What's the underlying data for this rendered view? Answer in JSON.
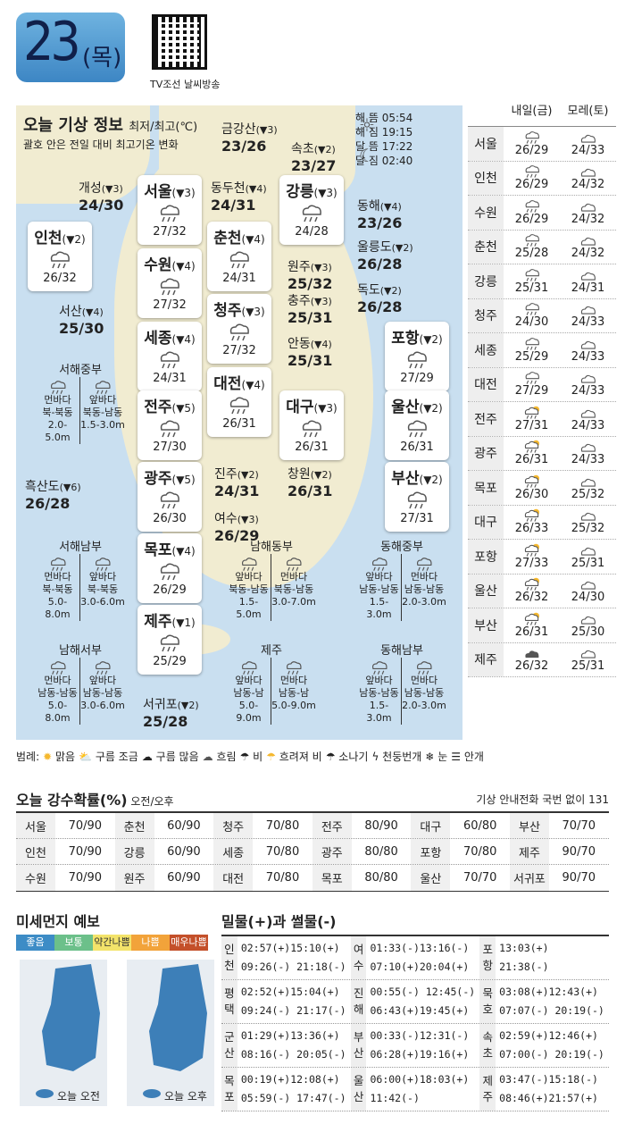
{
  "header": {
    "date": "23",
    "day": "(목)",
    "qr_caption": "TV조선 날씨방송"
  },
  "map": {
    "title": "오늘 기상 정보",
    "title_unit": "최저/최고(℃)",
    "subtitle": "괄호 안은 전일 대비 최고기온 변화",
    "sun": {
      "sunrise": "해 뜸 05:54",
      "sunset": "해 짐 19:15",
      "moonrise": "달 뜸 17:22",
      "moonset": "달 짐 02:40"
    },
    "cards": [
      {
        "name": "서울",
        "chg": "(▼3)",
        "v": "27/32",
        "icon": "rain"
      },
      {
        "name": "강릉",
        "chg": "(▼3)",
        "v": "24/28",
        "icon": "rain"
      },
      {
        "name": "인천",
        "chg": "(▼2)",
        "v": "26/32",
        "icon": "rain"
      },
      {
        "name": "춘천",
        "chg": "(▼4)",
        "v": "24/31",
        "icon": "rain"
      },
      {
        "name": "수원",
        "chg": "(▼4)",
        "v": "27/32",
        "icon": "rain"
      },
      {
        "name": "청주",
        "chg": "(▼3)",
        "v": "27/32",
        "icon": "rain"
      },
      {
        "name": "포항",
        "chg": "(▼2)",
        "v": "27/29",
        "icon": "rain"
      },
      {
        "name": "세종",
        "chg": "(▼4)",
        "v": "24/31",
        "icon": "rain"
      },
      {
        "name": "대전",
        "chg": "(▼4)",
        "v": "26/31",
        "icon": "rain"
      },
      {
        "name": "울산",
        "chg": "(▼2)",
        "v": "26/31",
        "icon": "rain"
      },
      {
        "name": "전주",
        "chg": "(▼5)",
        "v": "27/30",
        "icon": "rain"
      },
      {
        "name": "대구",
        "chg": "(▼3)",
        "v": "26/31",
        "icon": "rain"
      },
      {
        "name": "부산",
        "chg": "(▼2)",
        "v": "27/31",
        "icon": "rain"
      },
      {
        "name": "광주",
        "chg": "(▼5)",
        "v": "26/30",
        "icon": "rain"
      },
      {
        "name": "목포",
        "chg": "(▼4)",
        "v": "26/29",
        "icon": "rain"
      },
      {
        "name": "제주",
        "chg": "(▼1)",
        "v": "25/29",
        "icon": "rain"
      }
    ],
    "cities": [
      {
        "name": "금강산",
        "chg": "(▼3)",
        "v": "23/26"
      },
      {
        "name": "속초",
        "chg": "(▼2)",
        "v": "23/27"
      },
      {
        "name": "개성",
        "chg": "(▼3)",
        "v": "24/30"
      },
      {
        "name": "동두천",
        "chg": "(▼4)",
        "v": "24/31"
      },
      {
        "name": "동해",
        "chg": "(▼4)",
        "v": "23/26"
      },
      {
        "name": "울릉도",
        "chg": "(▼2)",
        "v": "26/28"
      },
      {
        "name": "원주",
        "chg": "(▼3)",
        "v": "25/32"
      },
      {
        "name": "독도",
        "chg": "(▼2)",
        "v": "26/28"
      },
      {
        "name": "서산",
        "chg": "(▼4)",
        "v": "25/30"
      },
      {
        "name": "충주",
        "chg": "(▼3)",
        "v": "25/31"
      },
      {
        "name": "안동",
        "chg": "(▼4)",
        "v": "25/31"
      },
      {
        "name": "흑산도",
        "chg": "(▼6)",
        "v": "26/28"
      },
      {
        "name": "진주",
        "chg": "(▼2)",
        "v": "24/31"
      },
      {
        "name": "창원",
        "chg": "(▼2)",
        "v": "26/31"
      },
      {
        "name": "여수",
        "chg": "(▼3)",
        "v": "26/29"
      },
      {
        "name": "서귀포",
        "chg": "(▼2)",
        "v": "25/28"
      }
    ],
    "seas": [
      {
        "name": "서해중부",
        "a": "먼바다",
        "a1": "북-북동",
        "a2": "2.0-5.0m",
        "b": "앞바다",
        "b1": "북동-남동",
        "b2": "1.5-3.0m"
      },
      {
        "name": "서해남부",
        "a": "먼바다",
        "a1": "북-북동",
        "a2": "5.0-8.0m",
        "b": "앞바다",
        "b1": "북-북동",
        "b2": "3.0-6.0m"
      },
      {
        "name": "남해동부",
        "a": "앞바다",
        "a1": "북동-남동",
        "a2": "1.5-5.0m",
        "b": "먼바다",
        "b1": "북동-남동",
        "b2": "3.0-7.0m"
      },
      {
        "name": "동해중부",
        "a": "앞바다",
        "a1": "남동-남동",
        "a2": "1.5-3.0m",
        "b": "먼바다",
        "b1": "남동-남동",
        "b2": "2.0-3.0m"
      },
      {
        "name": "남해서부",
        "a": "먼바다",
        "a1": "남동-남동",
        "a2": "5.0-8.0m",
        "b": "앞바다",
        "b1": "남동-남동",
        "b2": "3.0-6.0m"
      },
      {
        "name": "제주",
        "a": "앞바다",
        "a1": "남동-남",
        "a2": "5.0-9.0m",
        "b": "먼바다",
        "b1": "남동-남",
        "b2": "5.0-9.0m"
      },
      {
        "name": "동해남부",
        "a": "앞바다",
        "a1": "남동-남동",
        "a2": "1.5-3.0m",
        "b": "먼바다",
        "b1": "남동-남동",
        "b2": "2.0-3.0m"
      }
    ]
  },
  "forecast": {
    "tomorrow": "내일(금)",
    "dayafter": "모레(토)",
    "rows": [
      {
        "city": "서울",
        "t": "26/29",
        "ti": "rain",
        "d": "24/33",
        "di": "cloud"
      },
      {
        "city": "인천",
        "t": "26/29",
        "ti": "rain",
        "d": "24/32",
        "di": "cloud"
      },
      {
        "city": "수원",
        "t": "26/29",
        "ti": "rain",
        "d": "24/32",
        "di": "cloud"
      },
      {
        "city": "춘천",
        "t": "25/28",
        "ti": "rain",
        "d": "24/32",
        "di": "cloud"
      },
      {
        "city": "강릉",
        "t": "25/31",
        "ti": "rain",
        "d": "24/31",
        "di": "cloud"
      },
      {
        "city": "청주",
        "t": "24/30",
        "ti": "rain",
        "d": "24/33",
        "di": "cloud"
      },
      {
        "city": "세종",
        "t": "25/29",
        "ti": "rain",
        "d": "24/33",
        "di": "cloud"
      },
      {
        "city": "대전",
        "t": "27/29",
        "ti": "rain",
        "d": "24/33",
        "di": "cloud"
      },
      {
        "city": "전주",
        "t": "27/31",
        "ti": "sunrain",
        "d": "24/33",
        "di": "cloud"
      },
      {
        "city": "광주",
        "t": "26/31",
        "ti": "sunrain",
        "d": "24/33",
        "di": "cloud"
      },
      {
        "city": "목포",
        "t": "26/30",
        "ti": "sunrain",
        "d": "25/32",
        "di": "cloud"
      },
      {
        "city": "대구",
        "t": "26/33",
        "ti": "sunrain",
        "d": "25/32",
        "di": "cloud"
      },
      {
        "city": "포항",
        "t": "27/33",
        "ti": "sunrain",
        "d": "25/31",
        "di": "cloud"
      },
      {
        "city": "울산",
        "t": "26/32",
        "ti": "sunrain",
        "d": "24/30",
        "di": "cloud"
      },
      {
        "city": "부산",
        "t": "26/31",
        "ti": "sunrain",
        "d": "25/30",
        "di": "cloud"
      },
      {
        "city": "제주",
        "t": "26/32",
        "ti": "dark",
        "d": "25/31",
        "di": "cloud"
      }
    ]
  },
  "legend": {
    "prefix": "범례:",
    "items": [
      "맑음",
      "구름 조금",
      "구름 많음",
      "흐림",
      "비",
      "흐려져 비",
      "소나기",
      "천둥번개",
      "눈",
      "안개"
    ]
  },
  "rain": {
    "title": "오늘 강수확률(%)",
    "sub": "오전/오후",
    "tel": "기상 안내전화 국번 없이 131",
    "rows": [
      [
        "서울",
        "70/90",
        "춘천",
        "60/90",
        "청주",
        "70/80",
        "전주",
        "80/90",
        "대구",
        "60/80",
        "부산",
        "70/70"
      ],
      [
        "인천",
        "70/90",
        "강릉",
        "60/90",
        "세종",
        "70/80",
        "광주",
        "80/80",
        "포항",
        "70/80",
        "제주",
        "90/70"
      ],
      [
        "수원",
        "70/90",
        "원주",
        "60/90",
        "대전",
        "70/80",
        "목포",
        "80/80",
        "울산",
        "70/70",
        "서귀포",
        "90/70"
      ]
    ]
  },
  "dust": {
    "title": "미세먼지 예보",
    "levels": [
      "좋음",
      "보통",
      "약간나쁨",
      "나쁨",
      "매우나쁨"
    ],
    "colors": [
      "#3d8cc6",
      "#6cc08a",
      "#f3e36a",
      "#f2a33a",
      "#c4502a"
    ],
    "am": "오늘 오전",
    "pm": "오늘 오후"
  },
  "tide": {
    "title": "밀물(+)과 썰물(-)",
    "rows": [
      [
        {
          "k": "인\n천",
          "a": "02:57(+)15:10(+)",
          "b": "09:26(-) 21:18(-)"
        },
        {
          "k": "여\n수",
          "a": "01:33(-)13:16(-)",
          "b": "07:10(+)20:04(+)"
        },
        {
          "k": "포\n항",
          "a": "13:03(+)",
          "b": "21:38(-)"
        }
      ],
      [
        {
          "k": "평\n택",
          "a": "02:52(+)15:04(+)",
          "b": "09:24(-) 21:17(-)"
        },
        {
          "k": "진\n해",
          "a": "00:55(-) 12:45(-)",
          "b": "06:43(+)19:45(+)"
        },
        {
          "k": "묵\n호",
          "a": "03:08(+)12:43(+)",
          "b": "07:07(-) 20:19(-)"
        }
      ],
      [
        {
          "k": "군\n산",
          "a": "01:29(+)13:36(+)",
          "b": "08:16(-) 20:05(-)"
        },
        {
          "k": "부\n산",
          "a": "00:33(-)12:31(-)",
          "b": "06:28(+)19:16(+)"
        },
        {
          "k": "속\n초",
          "a": "02:59(+)12:46(+)",
          "b": "07:00(-) 20:19(-)"
        }
      ],
      [
        {
          "k": "목\n포",
          "a": "00:19(+)12:08(+)",
          "b": "05:59(-) 17:47(-)"
        },
        {
          "k": "울\n산",
          "a": "06:00(+)18:03(+)",
          "b": "11:42(-)"
        },
        {
          "k": "제\n주",
          "a": "03:47(-)15:18(-)",
          "b": "08:46(+)21:57(+)"
        }
      ]
    ]
  }
}
